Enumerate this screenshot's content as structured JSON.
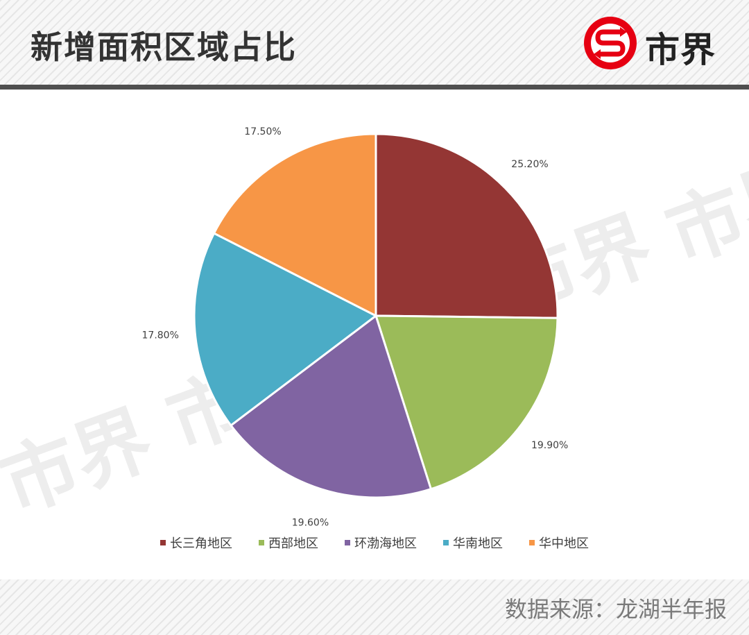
{
  "header": {
    "title": "新增面积区域占比",
    "logo_text": "市界"
  },
  "chart_data": {
    "type": "pie",
    "title": "",
    "categories": [
      "长三角地区",
      "西部地区",
      "环渤海地区",
      "华南地区",
      "华中地区"
    ],
    "values": [
      25.2,
      19.9,
      19.6,
      17.8,
      17.5
    ],
    "data_labels": [
      "25.20%",
      "19.90%",
      "19.60%",
      "17.80%",
      "17.50%"
    ],
    "colors": [
      "#943634",
      "#9bbb59",
      "#8064a2",
      "#4bacc6",
      "#f79646"
    ],
    "start_angle": "12 o'clock",
    "direction": "clockwise",
    "legend_position": "bottom"
  },
  "watermark_text": "市界",
  "footer": {
    "source": "数据来源：龙湖半年报"
  }
}
